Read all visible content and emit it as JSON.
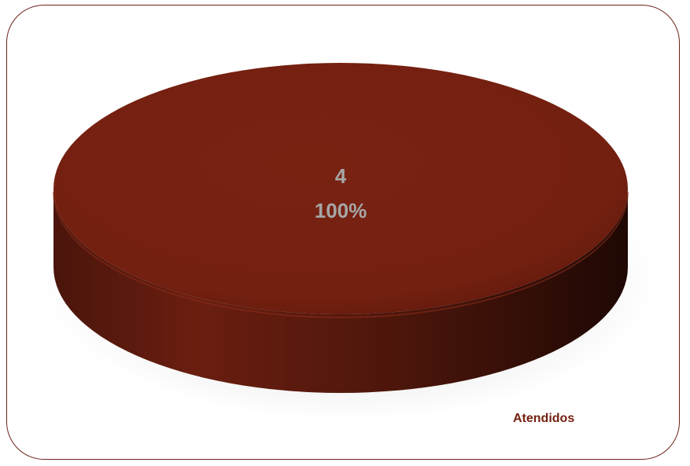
{
  "chart_data": {
    "type": "pie",
    "style": "3d",
    "title": "",
    "categories": [
      "Atendidos"
    ],
    "values": [
      4
    ],
    "percentages": [
      "100%"
    ],
    "series": [
      {
        "name": "Atendidos",
        "values": [
          4
        ]
      }
    ],
    "data_labels": {
      "value": "4",
      "percent": "100%"
    },
    "legend": {
      "position": "bottom-right",
      "entries": [
        "Atendidos"
      ]
    },
    "colors": {
      "slice": "#742010",
      "slice_dark": "#2e0c06",
      "label": "#a6a6a6",
      "legend_text": "#742010",
      "border": "#6b2418"
    }
  }
}
